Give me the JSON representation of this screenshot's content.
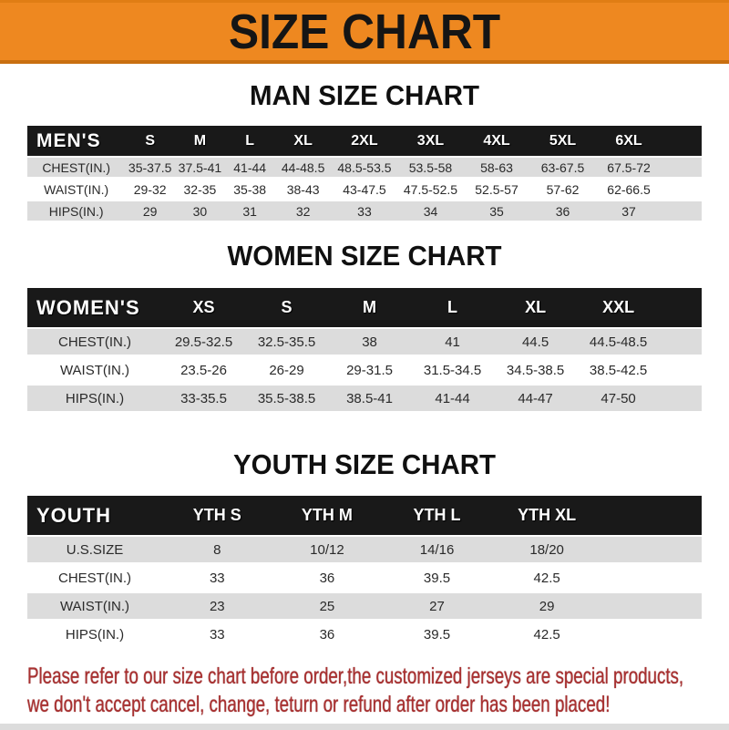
{
  "banner": {
    "title": "SIZE CHART"
  },
  "colors": {
    "banner_orange": "#ee8820",
    "header_black": "#191919",
    "row_gray": "#dcdcdc",
    "footer_red": "#a93030"
  },
  "sections": [
    {
      "heading": "MAN SIZE CHART",
      "table_label": "MEN'S",
      "columns": [
        "S",
        "M",
        "L",
        "XL",
        "2XL",
        "3XL",
        "4XL",
        "5XL",
        "6XL"
      ],
      "rows": [
        {
          "label": "CHEST(IN.)",
          "values": [
            "35-37.5",
            "37.5-41",
            "41-44",
            "44-48.5",
            "48.5-53.5",
            "53.5-58",
            "58-63",
            "63-67.5",
            "67.5-72"
          ]
        },
        {
          "label": "WAIST(IN.)",
          "values": [
            "29-32",
            "32-35",
            "35-38",
            "38-43",
            "43-47.5",
            "47.5-52.5",
            "52.5-57",
            "57-62",
            "62-66.5"
          ]
        },
        {
          "label": "HIPS(IN.)",
          "values": [
            "29",
            "30",
            "31",
            "32",
            "33",
            "34",
            "35",
            "36",
            "37"
          ]
        }
      ]
    },
    {
      "heading": "WOMEN SIZE CHART",
      "table_label": "WOMEN'S",
      "columns": [
        "XS",
        "S",
        "M",
        "L",
        "XL",
        "XXL"
      ],
      "rows": [
        {
          "label": "CHEST(IN.)",
          "values": [
            "29.5-32.5",
            "32.5-35.5",
            "38",
            "41",
            "44.5",
            "44.5-48.5"
          ]
        },
        {
          "label": "WAIST(IN.)",
          "values": [
            "23.5-26",
            "26-29",
            "29-31.5",
            "31.5-34.5",
            "34.5-38.5",
            "38.5-42.5"
          ]
        },
        {
          "label": "HIPS(IN.)",
          "values": [
            "33-35.5",
            "35.5-38.5",
            "38.5-41",
            "41-44",
            "44-47",
            "47-50"
          ]
        }
      ]
    },
    {
      "heading": "YOUTH SIZE CHART",
      "table_label": "YOUTH",
      "columns": [
        "YTH S",
        "YTH M",
        "YTH L",
        "YTH XL"
      ],
      "rows": [
        {
          "label": "U.S.SIZE",
          "values": [
            "8",
            "10/12",
            "14/16",
            "18/20"
          ]
        },
        {
          "label": "CHEST(IN.)",
          "values": [
            "33",
            "36",
            "39.5",
            "42.5"
          ]
        },
        {
          "label": "WAIST(IN.)",
          "values": [
            "23",
            "25",
            "27",
            "29"
          ]
        },
        {
          "label": "HIPS(IN.)",
          "values": [
            "33",
            "36",
            "39.5",
            "42.5"
          ]
        }
      ]
    }
  ],
  "footer": {
    "line1": "Please refer to our size chart before order,the customized jerseys are special products,",
    "line2": "we don't accept cancel, change, teturn or refund after order has been placed!"
  }
}
